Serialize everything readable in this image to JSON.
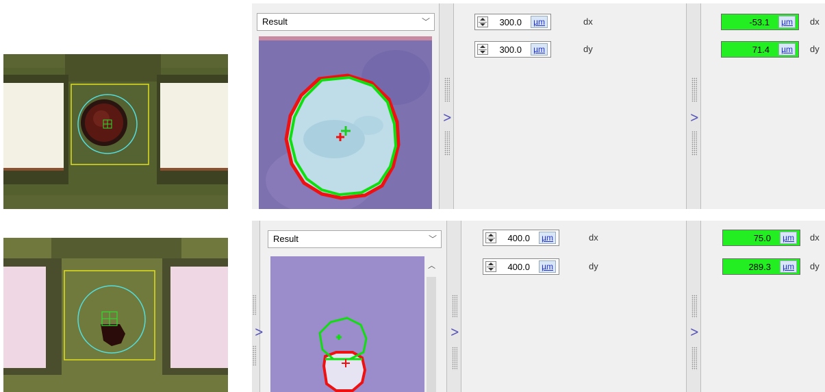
{
  "rows": [
    {
      "result_label": "Result",
      "offset": {
        "dx_value": "300.0",
        "dx_unit": "µm",
        "dx_axis": "dx",
        "dy_value": "300.0",
        "dy_unit": "µm",
        "dy_axis": "dy"
      },
      "measured": {
        "dx_value": "-53.1",
        "dx_unit": "µm",
        "dx_axis": "dx",
        "dy_value": "71.4",
        "dy_unit": "µm",
        "dy_axis": "dy"
      }
    },
    {
      "result_label": "Result",
      "offset": {
        "dx_value": "400.0",
        "dx_unit": "µm",
        "dx_axis": "dx",
        "dy_value": "400.0",
        "dy_unit": "µm",
        "dy_axis": "dy"
      },
      "measured": {
        "dx_value": "75.0",
        "dx_unit": "µm",
        "dx_axis": "dx",
        "dy_value": "289.3",
        "dy_unit": "µm",
        "dy_axis": "dy"
      }
    }
  ],
  "colors": {
    "pass_green": "#22ee22",
    "overlay_red": "#ee1111",
    "overlay_green": "#11dd11",
    "fiducial_cyan": "#55dddd",
    "roi_yellow": "#e0e020",
    "panel_bg": "#f0f0f0",
    "splitter_chevron": "#5a58b8"
  }
}
